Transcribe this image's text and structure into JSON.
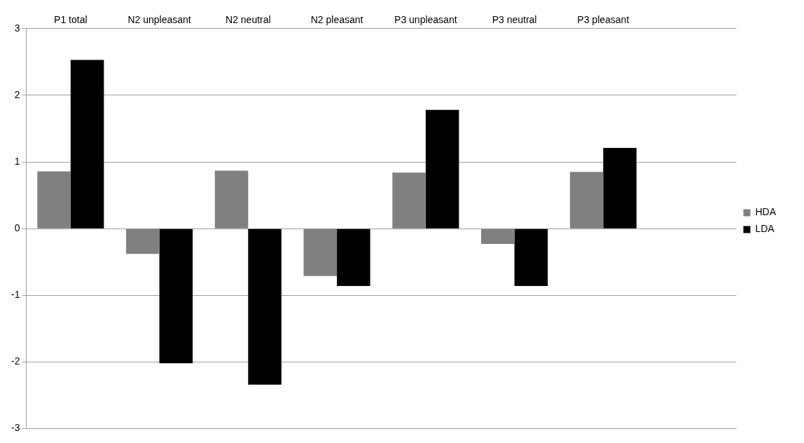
{
  "chart_data": {
    "type": "bar",
    "categories": [
      "P1 total",
      "N2 unpleasant",
      "N2 neutral",
      "N2 pleasant",
      "P3 unpleasant",
      "P3 neutral",
      "P3 pleasant",
      null
    ],
    "series": [
      {
        "name": "HDA",
        "color": "#808080",
        "values": [
          0.86,
          -0.38,
          0.87,
          -0.71,
          0.84,
          -0.23,
          0.85,
          null
        ]
      },
      {
        "name": "LDA",
        "color": "#000000",
        "values": [
          2.53,
          -2.02,
          -2.34,
          -0.86,
          1.78,
          -0.86,
          1.21,
          null
        ]
      }
    ],
    "ylim": [
      -3,
      3
    ],
    "yticks": [
      -3,
      -2,
      -1,
      0,
      1,
      2,
      3
    ],
    "grid": "y",
    "legend": "right"
  }
}
